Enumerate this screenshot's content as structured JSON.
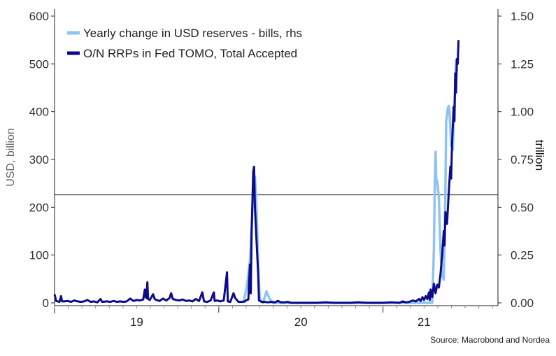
{
  "chart_data": {
    "type": "line",
    "title": "",
    "ylabel": "USD, billion",
    "ylabel_right": "trillion",
    "source": "Source: Macrobond and Nordea",
    "ylim": [
      0,
      600
    ],
    "ylim_right": [
      0,
      1.5
    ],
    "yticks": [
      "0",
      "100",
      "200",
      "300",
      "400",
      "500",
      "600"
    ],
    "yticks_right": [
      "0.00",
      "0.25",
      "0.50",
      "0.75",
      "1.00",
      "1.25",
      "1.50"
    ],
    "xlim": [
      2018.5,
      2021.2
    ],
    "xticks": [
      {
        "label": "19",
        "x": 2019.0
      },
      {
        "label": "20",
        "x": 2020.0
      },
      {
        "label": "21",
        "x": 2020.75
      }
    ],
    "reference_line": {
      "axis": "left",
      "y": 226
    },
    "legend_position": "top-left",
    "series": [
      {
        "name": "Yearly change in USD reserves  - bills, rhs",
        "axis": "right",
        "color": "#8fc3f0",
        "points": [
          [
            2019.65,
            0.0
          ],
          [
            2019.67,
            0.08
          ],
          [
            2019.69,
            0.22
          ],
          [
            2019.7,
            0.4
          ],
          [
            2019.71,
            0.58
          ],
          [
            2019.72,
            0.66
          ],
          [
            2019.73,
            0.5
          ],
          [
            2019.74,
            0.18
          ],
          [
            2019.75,
            0.02
          ],
          [
            2019.77,
            0.0
          ],
          [
            2019.79,
            0.06
          ],
          [
            2019.81,
            0.02
          ],
          [
            2019.83,
            0.0
          ],
          [
            2020.8,
            0.0
          ],
          [
            2020.81,
            0.28
          ],
          [
            2020.815,
            0.6
          ],
          [
            2020.82,
            0.79
          ],
          [
            2020.825,
            0.62
          ],
          [
            2020.83,
            0.64
          ],
          [
            2020.84,
            0.55
          ],
          [
            2020.85,
            0.28
          ],
          [
            2020.86,
            0.14
          ],
          [
            2020.87,
            0.12
          ],
          [
            2020.875,
            0.33
          ],
          [
            2020.88,
            0.6
          ],
          [
            2020.885,
            0.95
          ],
          [
            2020.89,
            0.98
          ],
          [
            2020.895,
            1.02
          ],
          [
            2020.9,
            1.03
          ],
          [
            2020.905,
            1.0
          ],
          [
            2020.91,
            0.92
          ],
          [
            2020.915,
            0.82
          ],
          [
            2020.92,
            0.82
          ],
          [
            2020.925,
            0.8
          ],
          [
            2020.93,
            0.93
          ],
          [
            2020.935,
            1.05
          ],
          [
            2020.94,
            1.15
          ],
          [
            2020.945,
            1.27
          ],
          [
            2020.95,
            1.21
          ]
        ]
      },
      {
        "name": "O/N RRPs in Fed TOMO, Total Accepted",
        "axis": "left",
        "color": "#0b0b8c",
        "points": [
          [
            2018.5,
            18
          ],
          [
            2018.51,
            4
          ],
          [
            2018.52,
            3
          ],
          [
            2018.53,
            2
          ],
          [
            2018.54,
            14
          ],
          [
            2018.545,
            3
          ],
          [
            2018.56,
            3
          ],
          [
            2018.58,
            4
          ],
          [
            2018.6,
            2
          ],
          [
            2018.62,
            5
          ],
          [
            2018.64,
            3
          ],
          [
            2018.66,
            2
          ],
          [
            2018.68,
            3
          ],
          [
            2018.7,
            6
          ],
          [
            2018.72,
            2
          ],
          [
            2018.74,
            3
          ],
          [
            2018.76,
            1
          ],
          [
            2018.78,
            8
          ],
          [
            2018.79,
            2
          ],
          [
            2018.82,
            3
          ],
          [
            2018.84,
            2
          ],
          [
            2018.86,
            4
          ],
          [
            2018.88,
            2
          ],
          [
            2018.9,
            3
          ],
          [
            2018.92,
            2
          ],
          [
            2018.94,
            3
          ],
          [
            2018.96,
            9
          ],
          [
            2018.98,
            4
          ],
          [
            2019.0,
            6
          ],
          [
            2019.02,
            5
          ],
          [
            2019.04,
            7
          ],
          [
            2019.05,
            28
          ],
          [
            2019.055,
            12
          ],
          [
            2019.06,
            10
          ],
          [
            2019.065,
            43
          ],
          [
            2019.07,
            8
          ],
          [
            2019.08,
            6
          ],
          [
            2019.1,
            18
          ],
          [
            2019.11,
            8
          ],
          [
            2019.12,
            6
          ],
          [
            2019.14,
            4
          ],
          [
            2019.16,
            9
          ],
          [
            2019.18,
            5
          ],
          [
            2019.2,
            10
          ],
          [
            2019.21,
            20
          ],
          [
            2019.22,
            8
          ],
          [
            2019.24,
            6
          ],
          [
            2019.26,
            5
          ],
          [
            2019.28,
            7
          ],
          [
            2019.3,
            4
          ],
          [
            2019.32,
            5
          ],
          [
            2019.34,
            3
          ],
          [
            2019.36,
            8
          ],
          [
            2019.38,
            4
          ],
          [
            2019.4,
            22
          ],
          [
            2019.41,
            3
          ],
          [
            2019.43,
            2
          ],
          [
            2019.45,
            5
          ],
          [
            2019.47,
            22
          ],
          [
            2019.475,
            4
          ],
          [
            2019.49,
            5
          ],
          [
            2019.51,
            3
          ],
          [
            2019.53,
            5
          ],
          [
            2019.55,
            64
          ],
          [
            2019.555,
            3
          ],
          [
            2019.57,
            2
          ],
          [
            2019.59,
            20
          ],
          [
            2019.6,
            10
          ],
          [
            2019.62,
            2
          ],
          [
            2019.64,
            2
          ],
          [
            2019.66,
            3
          ],
          [
            2019.67,
            6
          ],
          [
            2019.68,
            7
          ],
          [
            2019.69,
            80
          ],
          [
            2019.695,
            20
          ],
          [
            2019.7,
            150
          ],
          [
            2019.71,
            275
          ],
          [
            2019.715,
            285
          ],
          [
            2019.72,
            200
          ],
          [
            2019.73,
            130
          ],
          [
            2019.74,
            60
          ],
          [
            2019.745,
            5
          ],
          [
            2019.76,
            2
          ],
          [
            2019.78,
            2
          ],
          [
            2019.8,
            1
          ],
          [
            2019.82,
            2
          ],
          [
            2019.84,
            1
          ],
          [
            2019.86,
            4
          ],
          [
            2019.88,
            1
          ],
          [
            2019.9,
            1
          ],
          [
            2019.92,
            2
          ],
          [
            2019.94,
            0
          ],
          [
            2019.97,
            0
          ],
          [
            2020.0,
            0
          ],
          [
            2020.05,
            0
          ],
          [
            2020.1,
            0
          ],
          [
            2020.15,
            1
          ],
          [
            2020.2,
            0
          ],
          [
            2020.25,
            0
          ],
          [
            2020.3,
            0
          ],
          [
            2020.35,
            1
          ],
          [
            2020.4,
            0
          ],
          [
            2020.45,
            0
          ],
          [
            2020.5,
            0
          ],
          [
            2020.55,
            1
          ],
          [
            2020.6,
            0
          ],
          [
            2020.62,
            3
          ],
          [
            2020.64,
            1
          ],
          [
            2020.66,
            2
          ],
          [
            2020.68,
            5
          ],
          [
            2020.7,
            3
          ],
          [
            2020.72,
            8
          ],
          [
            2020.73,
            4
          ],
          [
            2020.74,
            12
          ],
          [
            2020.75,
            6
          ],
          [
            2020.76,
            14
          ],
          [
            2020.77,
            8
          ],
          [
            2020.78,
            22
          ],
          [
            2020.785,
            6
          ],
          [
            2020.79,
            28
          ],
          [
            2020.8,
            12
          ],
          [
            2020.81,
            40
          ],
          [
            2020.82,
            20
          ],
          [
            2020.83,
            38
          ],
          [
            2020.84,
            32
          ],
          [
            2020.85,
            60
          ],
          [
            2020.86,
            100
          ],
          [
            2020.87,
            150
          ],
          [
            2020.875,
            120
          ],
          [
            2020.88,
            190
          ],
          [
            2020.89,
            165
          ],
          [
            2020.9,
            230
          ],
          [
            2020.91,
            285
          ],
          [
            2020.915,
            260
          ],
          [
            2020.92,
            330
          ],
          [
            2020.93,
            410
          ],
          [
            2020.935,
            380
          ],
          [
            2020.94,
            480
          ],
          [
            2020.945,
            440
          ],
          [
            2020.95,
            510
          ],
          [
            2020.955,
            500
          ],
          [
            2020.96,
            548
          ],
          [
            2020.965,
            548
          ]
        ]
      }
    ]
  }
}
